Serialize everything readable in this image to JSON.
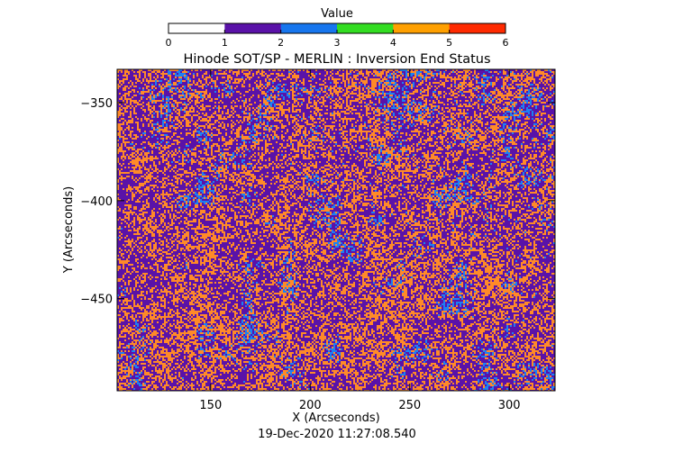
{
  "chart_data": {
    "type": "heatmap",
    "title": "Hinode SOT/SP - MERLIN : Inversion End Status",
    "xlabel": "X (Arcseconds)",
    "ylabel": "Y (Arcseconds)",
    "timestamp": "19-Dec-2020 11:27:08.540",
    "xlim": [
      103,
      323
    ],
    "ylim": [
      -497,
      -333
    ],
    "x_ticks": [
      150,
      200,
      250,
      300
    ],
    "y_ticks": [
      -350,
      -400,
      -450
    ],
    "colorbar": {
      "label": "Value",
      "range": [
        0,
        6
      ],
      "ticks": [
        0,
        1,
        2,
        3,
        4,
        5,
        6
      ],
      "colors": [
        "#ffffff",
        "#5a12a8",
        "#1776ee",
        "#33dd22",
        "#ffa000",
        "#ff2a00"
      ]
    },
    "value_colors": {
      "1": "#5a12a8",
      "2": "#1c80f4",
      "4": "#ff8a28"
    },
    "grid": false,
    "legend": "colorbar-top"
  }
}
